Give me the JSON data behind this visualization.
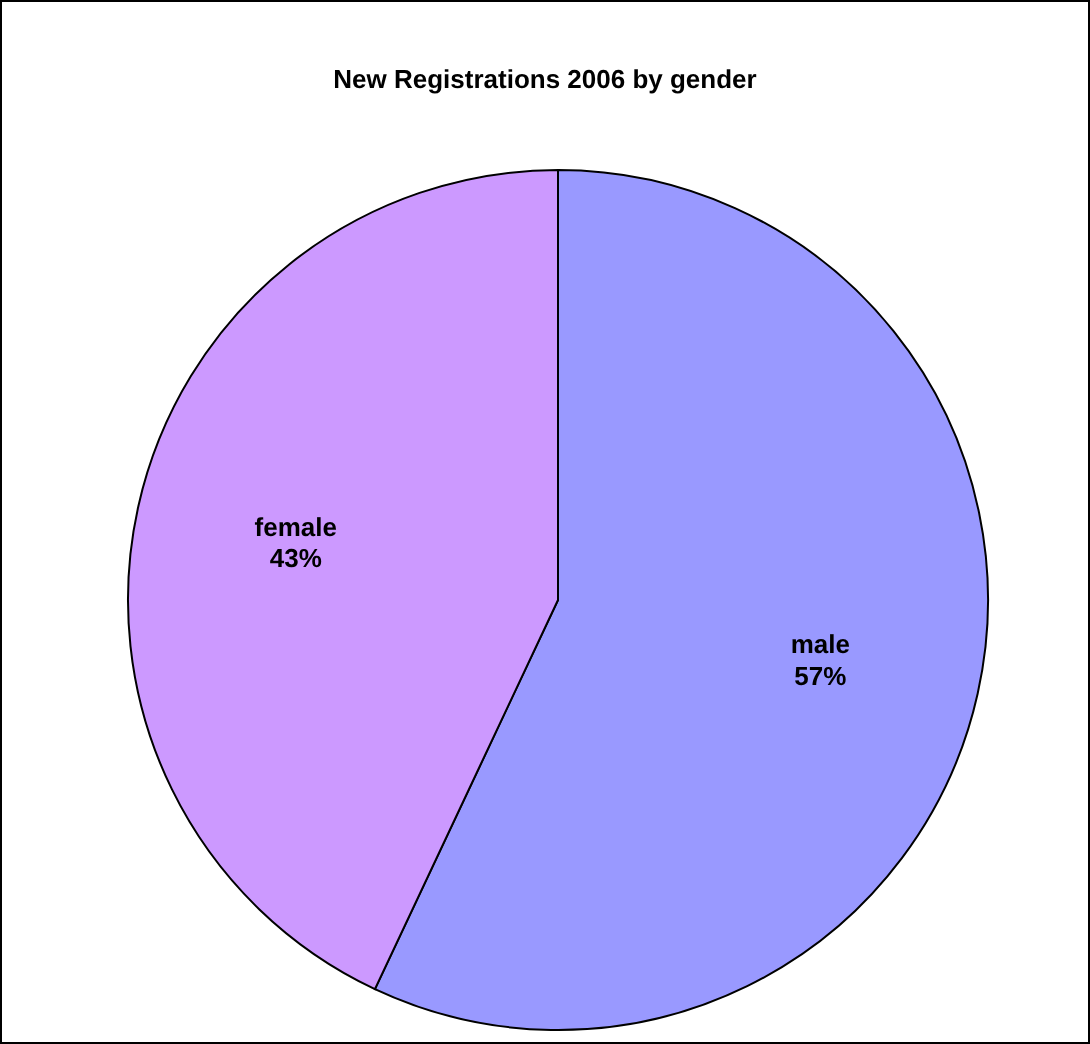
{
  "chart_data": {
    "type": "pie",
    "title": "New Registrations 2006 by gender",
    "categories": [
      "male",
      "female"
    ],
    "values": [
      57,
      43
    ],
    "colors": [
      "#9999ff",
      "#cc99ff"
    ],
    "value_labels": [
      "57%",
      "43%"
    ]
  }
}
